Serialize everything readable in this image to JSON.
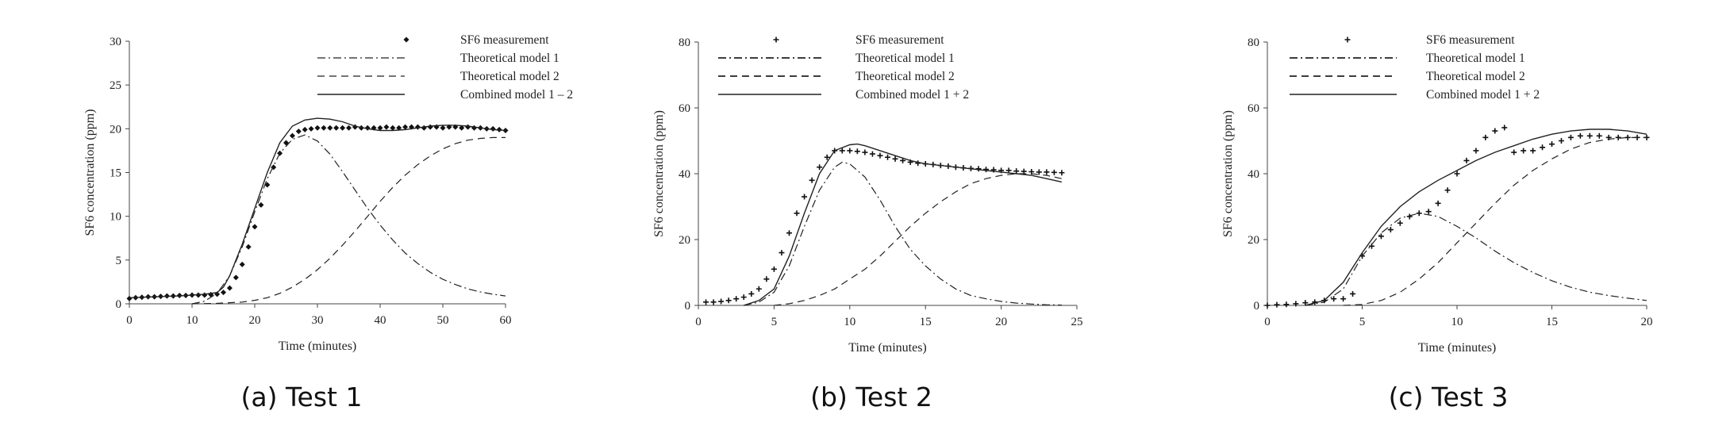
{
  "chart_data": [
    {
      "type": "line",
      "caption": "(a) Test 1",
      "xlabel": "Time (minutes)",
      "ylabel": "SF6 concentration (ppm)",
      "xlim": [
        0,
        60
      ],
      "ylim": [
        0,
        30
      ],
      "xticks": [
        0,
        10,
        20,
        30,
        40,
        50,
        60
      ],
      "yticks": [
        0,
        5,
        10,
        15,
        20,
        25,
        30
      ],
      "legend_position": "top-right",
      "marker": "diamond",
      "series": [
        {
          "name": "SF6 measurement",
          "kind": "markers",
          "x": [
            0,
            1,
            2,
            3,
            4,
            5,
            6,
            7,
            8,
            9,
            10,
            11,
            12,
            13,
            14,
            15,
            16,
            17,
            18,
            19,
            20,
            21,
            22,
            23,
            24,
            25,
            26,
            27,
            28,
            29,
            30,
            31,
            32,
            33,
            34,
            35,
            36,
            37,
            38,
            39,
            40,
            41,
            42,
            43,
            44,
            45,
            46,
            47,
            48,
            49,
            50,
            51,
            52,
            53,
            54,
            55,
            56,
            57,
            58,
            59,
            60
          ],
          "y": [
            0.6,
            0.7,
            0.75,
            0.8,
            0.8,
            0.85,
            0.9,
            0.9,
            0.95,
            0.95,
            1.0,
            1.0,
            1.0,
            1.05,
            1.1,
            1.3,
            1.8,
            3,
            4.5,
            6.5,
            8.8,
            11.3,
            13.6,
            15.6,
            17.2,
            18.4,
            19.2,
            19.7,
            19.9,
            20.0,
            20.1,
            20.1,
            20.1,
            20.1,
            20.1,
            20.1,
            20.2,
            20.1,
            20.1,
            20.1,
            20.1,
            20.2,
            20.1,
            20.1,
            20.2,
            20.2,
            20.2,
            20.1,
            20.2,
            20.2,
            20.1,
            20.2,
            20.2,
            20.1,
            20.2,
            20.1,
            20.1,
            20.0,
            20.0,
            19.9,
            19.8
          ]
        },
        {
          "name": "Theoretical model 1",
          "kind": "dashdot",
          "x": [
            10,
            12,
            14,
            16,
            18,
            20,
            22,
            24,
            26,
            28,
            30,
            32,
            34,
            36,
            38,
            40,
            42,
            44,
            46,
            48,
            50,
            52,
            54,
            56,
            58,
            60
          ],
          "y": [
            0,
            0.3,
            1.2,
            3.2,
            6.5,
            10.5,
            14.3,
            17.2,
            18.8,
            19.3,
            18.6,
            17.1,
            15.1,
            13.0,
            10.9,
            9.0,
            7.3,
            5.8,
            4.6,
            3.6,
            2.8,
            2.2,
            1.7,
            1.35,
            1.1,
            0.9
          ]
        },
        {
          "name": "Theoretical model 2",
          "kind": "dashed",
          "x": [
            10,
            14,
            18,
            20,
            22,
            24,
            26,
            28,
            30,
            32,
            34,
            36,
            38,
            40,
            42,
            44,
            46,
            48,
            50,
            52,
            54,
            56,
            58,
            60
          ],
          "y": [
            0,
            0.05,
            0.2,
            0.4,
            0.7,
            1.2,
            1.9,
            2.8,
            3.9,
            5.2,
            6.7,
            8.3,
            10.0,
            11.7,
            13.3,
            14.7,
            15.9,
            16.9,
            17.7,
            18.3,
            18.7,
            18.9,
            19.0,
            19.0
          ]
        },
        {
          "name": "Combined model 1 – 2",
          "kind": "solid",
          "x": [
            0,
            4,
            8,
            10,
            12,
            14,
            15,
            16,
            18,
            20,
            22,
            24,
            26,
            28,
            30,
            32,
            34,
            36,
            38,
            40,
            42,
            44,
            46,
            48,
            50,
            52,
            54,
            56,
            58,
            60
          ],
          "y": [
            0.7,
            0.8,
            0.9,
            1.0,
            1.1,
            1.3,
            1.9,
            3.2,
            6.8,
            10.9,
            15.0,
            18.4,
            20.3,
            21.0,
            21.2,
            21.1,
            20.8,
            20.3,
            20.0,
            19.8,
            19.8,
            19.9,
            20.1,
            20.3,
            20.4,
            20.4,
            20.3,
            20.1,
            19.9,
            19.8
          ]
        }
      ],
      "legend_labels": [
        "SF6 measurement",
        "Theoretical model 1",
        "Theoretical model 2",
        "Combined model 1 – 2"
      ]
    },
    {
      "type": "line",
      "caption": "(b) Test 2",
      "xlabel": "Time (minutes)",
      "ylabel": "SF6 concentration (ppm)",
      "xlim": [
        0,
        25
      ],
      "ylim": [
        0,
        80
      ],
      "xticks": [
        0,
        5,
        10,
        15,
        20,
        25
      ],
      "yticks": [
        0,
        20,
        40,
        60,
        80
      ],
      "legend_position": "top-right",
      "marker": "plus",
      "series": [
        {
          "name": "SF6 measurement",
          "kind": "markers",
          "x": [
            0.5,
            1,
            1.5,
            2,
            2.5,
            3,
            3.5,
            4,
            4.5,
            5,
            5.5,
            6,
            6.5,
            7,
            7.5,
            8,
            8.5,
            9,
            9.5,
            10,
            10.5,
            11,
            11.5,
            12,
            12.5,
            13,
            13.5,
            14,
            14.5,
            15,
            15.5,
            16,
            16.5,
            17,
            17.5,
            18,
            18.5,
            19,
            19.5,
            20,
            20.5,
            21,
            21.5,
            22,
            22.5,
            23,
            23.5,
            24
          ],
          "y": [
            1,
            1,
            1.2,
            1.5,
            2,
            2.5,
            3.5,
            5,
            8,
            11,
            16,
            22,
            28,
            33,
            38,
            42,
            45,
            47,
            47,
            47,
            46.8,
            46.5,
            46,
            45.5,
            45,
            44.5,
            44,
            43.5,
            43.2,
            43,
            42.8,
            42.5,
            42.3,
            42,
            41.8,
            41.6,
            41.5,
            41.3,
            41.2,
            41,
            41,
            40.8,
            40.7,
            40.6,
            40.5,
            40.5,
            40.4,
            40.3
          ]
        },
        {
          "name": "Theoretical model 1",
          "kind": "dashdot",
          "x": [
            3,
            4,
            5,
            6,
            7,
            8,
            9,
            9.5,
            10,
            11,
            12,
            13,
            14,
            15,
            16,
            17,
            18,
            19,
            20,
            21,
            22,
            23,
            24
          ],
          "y": [
            0,
            1,
            4,
            12,
            24,
            35,
            42,
            43.5,
            43,
            39,
            32,
            24,
            17,
            12,
            8,
            5,
            3,
            2,
            1.2,
            0.7,
            0.4,
            0.2,
            0.1
          ]
        },
        {
          "name": "Theoretical model 2",
          "kind": "dashed",
          "x": [
            5,
            6,
            7,
            8,
            9,
            10,
            11,
            12,
            13,
            14,
            15,
            16,
            17,
            18,
            19,
            20,
            21,
            22,
            23,
            24
          ],
          "y": [
            0,
            0.5,
            1.5,
            3,
            5,
            8,
            11,
            15,
            19.5,
            24,
            28,
            31.5,
            34.5,
            37,
            38.5,
            39.5,
            40,
            40,
            39.5,
            38.5
          ]
        },
        {
          "name": "Combined model 1 + 2",
          "kind": "solid",
          "x": [
            3,
            4,
            5,
            6,
            7,
            8,
            9,
            10,
            10.5,
            11,
            12,
            13,
            14,
            15,
            16,
            17,
            18,
            19,
            20,
            21,
            22,
            23,
            24
          ],
          "y": [
            0,
            1.5,
            5,
            15,
            28,
            40,
            47,
            48.8,
            49,
            48.5,
            47,
            45.5,
            44,
            43,
            42.5,
            42,
            41.5,
            41,
            40.5,
            40,
            39.5,
            38.5,
            37.5
          ]
        }
      ],
      "legend_labels": [
        "SF6 measurement",
        "Theoretical model 1",
        "Theoretical model 2",
        "Combined model 1 + 2"
      ]
    },
    {
      "type": "line",
      "caption": "(c) Test 3",
      "xlabel": "Time (minutes)",
      "ylabel": "SF6 concentration (ppm)",
      "xlim": [
        0,
        20
      ],
      "ylim": [
        0,
        80
      ],
      "xticks": [
        0,
        5,
        10,
        15,
        20
      ],
      "yticks": [
        0,
        20,
        40,
        60,
        80
      ],
      "legend_position": "top-right",
      "marker": "plus",
      "series": [
        {
          "name": "SF6 measurement",
          "kind": "markers",
          "x": [
            0,
            0.5,
            1,
            1.5,
            2,
            2.5,
            3,
            3.5,
            4,
            4.5,
            5,
            5.5,
            6,
            6.5,
            7,
            7.5,
            8,
            8.5,
            9,
            9.5,
            10,
            10.5,
            11,
            11.5,
            12,
            12.5,
            13,
            13.5,
            14,
            14.5,
            15,
            15.5,
            16,
            16.5,
            17,
            17.5,
            18,
            18.5,
            19,
            19.5,
            20
          ],
          "y": [
            0,
            0.2,
            0.3,
            0.5,
            0.8,
            1,
            1.5,
            2,
            2,
            3.5,
            15,
            18,
            21,
            23,
            25,
            27,
            28,
            28.5,
            31,
            35,
            40,
            44,
            47,
            51,
            53,
            54,
            46.5,
            47,
            47,
            48,
            49,
            50,
            51,
            51.5,
            51.5,
            51.5,
            51,
            51,
            51,
            51,
            51
          ]
        },
        {
          "name": "Theoretical model 1",
          "kind": "dashdot",
          "x": [
            2,
            3,
            4,
            5,
            6,
            7,
            8,
            9,
            10,
            11,
            12,
            13,
            14,
            15,
            16,
            17,
            18,
            19,
            20
          ],
          "y": [
            0,
            1,
            5,
            15,
            22,
            26.5,
            28,
            27,
            24,
            20.5,
            16.5,
            13,
            10,
            7.5,
            5.5,
            4,
            3,
            2.2,
            1.5
          ]
        },
        {
          "name": "Theoretical model 2",
          "kind": "dashed",
          "x": [
            4,
            5,
            6,
            7,
            8,
            9,
            10,
            11,
            12,
            13,
            14,
            15,
            16,
            17,
            18,
            19,
            20
          ],
          "y": [
            0,
            0.3,
            1.5,
            4,
            8,
            13,
            19,
            25,
            31,
            36.5,
            41,
            44.5,
            47.5,
            49.5,
            50.5,
            51,
            51
          ]
        },
        {
          "name": "Combined model 1 + 2",
          "kind": "solid",
          "x": [
            2,
            3,
            4,
            5,
            6,
            7,
            8,
            9,
            10,
            11,
            12,
            13,
            14,
            15,
            16,
            17,
            18,
            19,
            20
          ],
          "y": [
            0,
            1.5,
            7,
            16,
            24,
            30,
            34.5,
            38,
            41,
            44,
            46.5,
            48.5,
            50.5,
            52,
            53,
            53.5,
            53.5,
            53,
            52
          ]
        }
      ],
      "legend_labels": [
        "SF6 measurement",
        "Theoretical model 1",
        "Theoretical model 2",
        "Combined model 1 + 2"
      ]
    }
  ]
}
